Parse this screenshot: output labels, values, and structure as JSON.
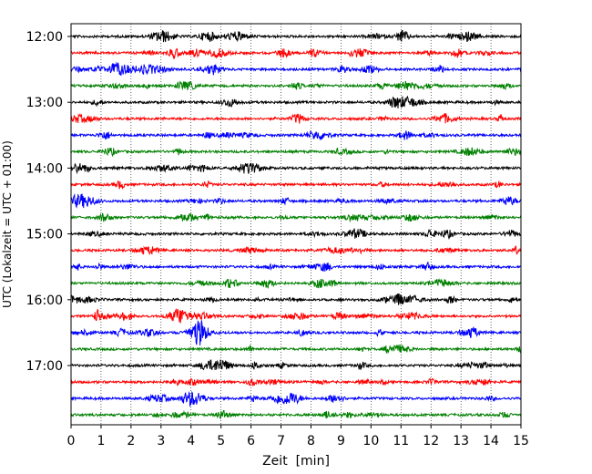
{
  "chart_data": {
    "type": "line",
    "title": "",
    "xlabel": "Zeit  [min]",
    "ylabel": "UTC (Lokalzeit = UTC + 01:00)",
    "xlim": [
      0,
      15
    ],
    "x_ticks": [
      "0",
      "1",
      "2",
      "3",
      "4",
      "5",
      "6",
      "7",
      "8",
      "9",
      "10",
      "11",
      "12",
      "13",
      "14",
      "15"
    ],
    "y_ticks": [
      "12:00",
      "13:00",
      "14:00",
      "15:00",
      "16:00",
      "17:00"
    ],
    "grid": "vertical dotted at each minute",
    "trace_interval_minutes": 15,
    "trace_start": "12:00",
    "trace_count": 24,
    "trace_colors": [
      "#000000",
      "#ff0000",
      "#0000ff",
      "#008000"
    ],
    "series": [
      {
        "start": "12:00",
        "color": "#000000"
      },
      {
        "start": "12:15",
        "color": "#ff0000"
      },
      {
        "start": "12:30",
        "color": "#0000ff"
      },
      {
        "start": "12:45",
        "color": "#008000"
      },
      {
        "start": "13:00",
        "color": "#000000"
      },
      {
        "start": "13:15",
        "color": "#ff0000"
      },
      {
        "start": "13:30",
        "color": "#0000ff"
      },
      {
        "start": "13:45",
        "color": "#008000"
      },
      {
        "start": "14:00",
        "color": "#000000"
      },
      {
        "start": "14:15",
        "color": "#ff0000"
      },
      {
        "start": "14:30",
        "color": "#0000ff"
      },
      {
        "start": "14:45",
        "color": "#008000"
      },
      {
        "start": "15:00",
        "color": "#000000"
      },
      {
        "start": "15:15",
        "color": "#ff0000"
      },
      {
        "start": "15:30",
        "color": "#0000ff"
      },
      {
        "start": "15:45",
        "color": "#008000"
      },
      {
        "start": "16:00",
        "color": "#000000"
      },
      {
        "start": "16:15",
        "color": "#ff0000"
      },
      {
        "start": "16:30",
        "color": "#0000ff"
      },
      {
        "start": "16:45",
        "color": "#008000"
      },
      {
        "start": "17:00",
        "color": "#000000"
      },
      {
        "start": "17:15",
        "color": "#ff0000"
      },
      {
        "start": "17:30",
        "color": "#0000ff"
      },
      {
        "start": "17:45",
        "color": "#008000"
      }
    ]
  }
}
